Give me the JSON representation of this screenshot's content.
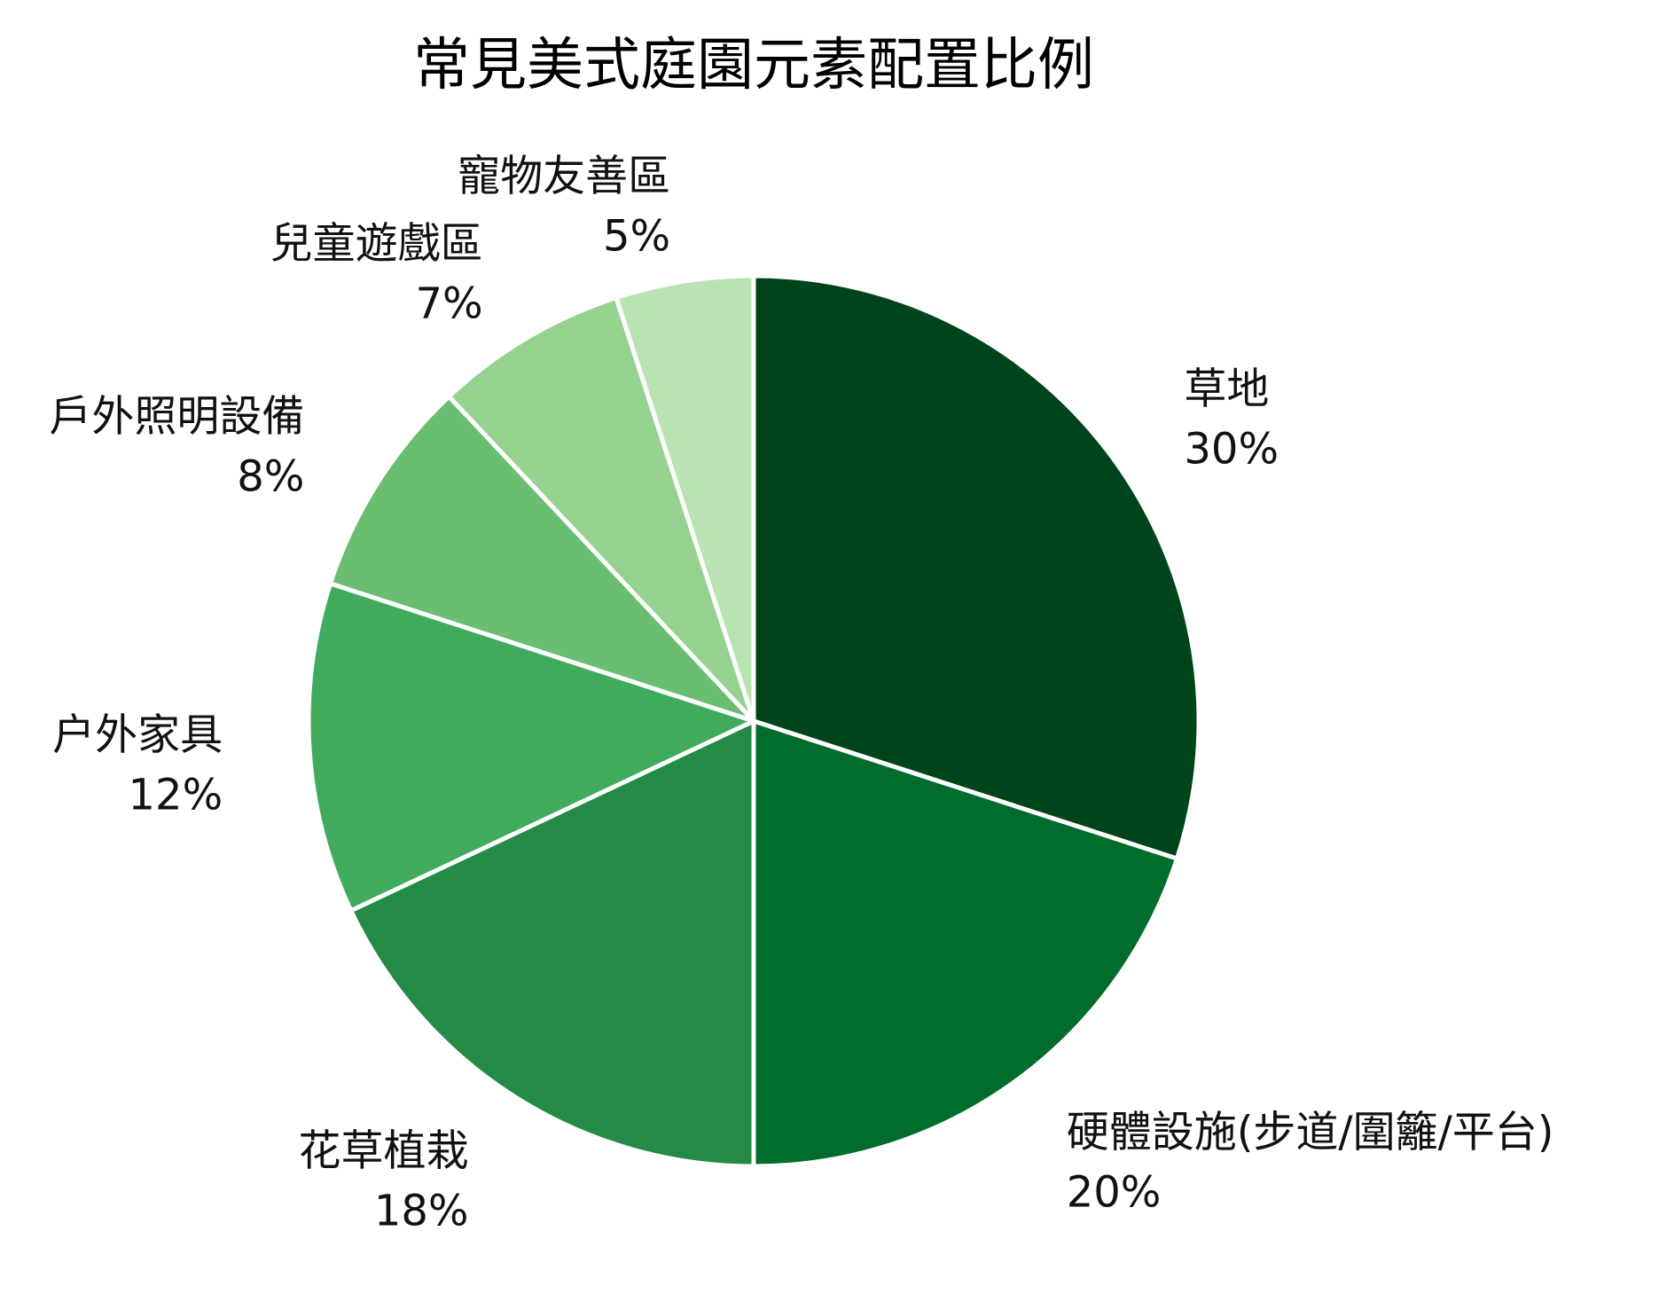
{
  "chart_data": {
    "type": "pie",
    "title": "常見美式庭園元素配置比例",
    "unit": "%",
    "start_angle": "top",
    "direction": "clockwise",
    "slices": [
      {
        "label": "草地",
        "value": 30,
        "value_label": "30%",
        "color": "#00441b"
      },
      {
        "label": "硬體設施(步道/圍籬/平台)",
        "value": 20,
        "value_label": "20%",
        "color": "#006d2c"
      },
      {
        "label": "花草植栽",
        "value": 18,
        "value_label": "18%",
        "color": "#238b45"
      },
      {
        "label": "户外家具",
        "value": 12,
        "value_label": "12%",
        "color": "#41ab5d"
      },
      {
        "label": "戶外照明設備",
        "value": 8,
        "value_label": "8%",
        "color": "#6abe71"
      },
      {
        "label": "兒童遊戲區",
        "value": 7,
        "value_label": "7%",
        "color": "#95d290"
      },
      {
        "label": "寵物友善區",
        "value": 5,
        "value_label": "5%",
        "color": "#bae3b4"
      }
    ]
  }
}
